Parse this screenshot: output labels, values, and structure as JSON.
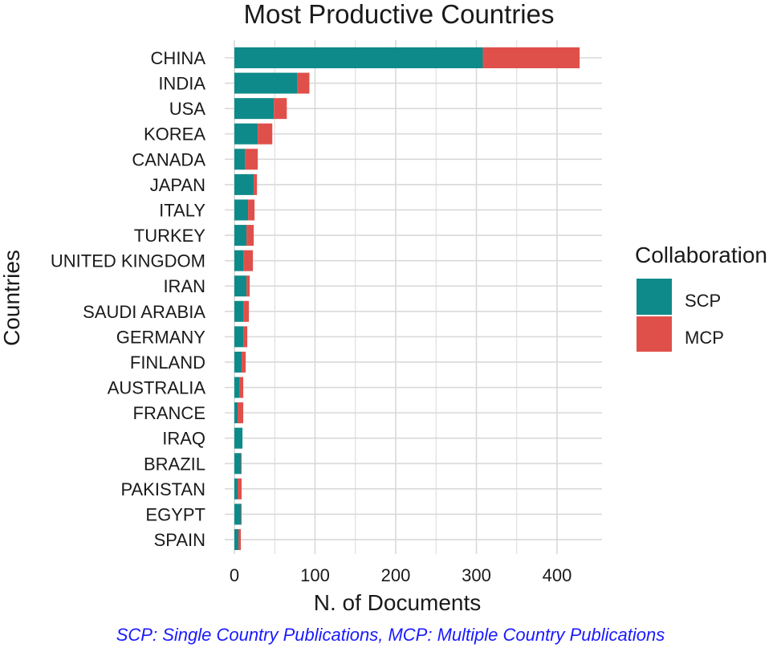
{
  "colors": {
    "background": "#ffffff",
    "grid": "#d9d9d9",
    "text": "#1a1a1a",
    "caption": "#1a1aff"
  },
  "chart_data": {
    "type": "bar",
    "orientation": "horizontal",
    "stacked": true,
    "title": "Most Productive Countries",
    "xlabel": "N. of Documents",
    "ylabel": "Countries",
    "xlim": [
      0,
      440
    ],
    "xticks": [
      0,
      100,
      200,
      300,
      400
    ],
    "grid": true,
    "legend": {
      "title": "Collaboration",
      "position": "right"
    },
    "categories": [
      "CHINA",
      "INDIA",
      "USA",
      "KOREA",
      "CANADA",
      "JAPAN",
      "ITALY",
      "TURKEY",
      "UNITED KINGDOM",
      "IRAN",
      "SAUDI ARABIA",
      "GERMANY",
      "FINLAND",
      "AUSTRALIA",
      "FRANCE",
      "IRAQ",
      "BRAZIL",
      "PAKISTAN",
      "EGYPT",
      "SPAIN"
    ],
    "series": [
      {
        "name": "SCP",
        "color": "#0f8a8a",
        "values": [
          308,
          78,
          49,
          29,
          13,
          24,
          17,
          15,
          11,
          15,
          11,
          11,
          9,
          6,
          4,
          10,
          8,
          4,
          8,
          5
        ]
      },
      {
        "name": "MCP",
        "color": "#e0504b",
        "values": [
          120,
          15,
          16,
          18,
          16,
          4,
          8,
          9,
          12,
          4,
          7,
          5,
          5,
          5,
          7,
          0,
          1,
          5,
          1,
          3
        ]
      }
    ]
  },
  "caption": "SCP: Single Country Publications, MCP: Multiple Country Publications"
}
